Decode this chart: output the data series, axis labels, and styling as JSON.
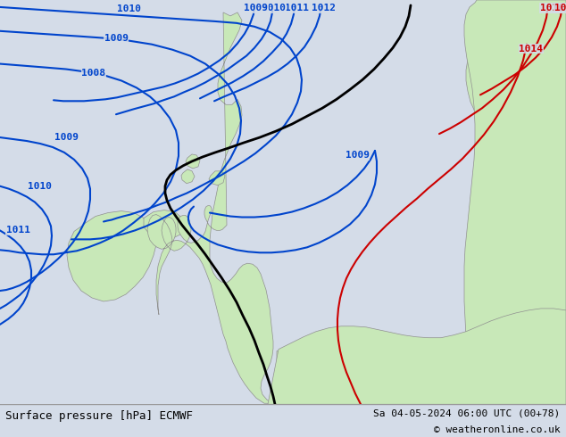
{
  "title_left": "Surface pressure [hPa] ECMWF",
  "title_right": "Sa 04-05-2024 06:00 UTC (00+78)",
  "copyright": "© weatheronline.co.uk",
  "bg_color": "#d4dce8",
  "land_color": "#c8e8b8",
  "coast_color": "#909090",
  "fig_width": 6.34,
  "fig_height": 4.9,
  "dpi": 100,
  "bottom_bar_color": "#e0e0e0",
  "isobar_color_blue": "#0044cc",
  "isobar_color_black": "#000000",
  "isobar_color_red": "#cc0000",
  "title_fontsize": 9,
  "label_fontsize": 8
}
